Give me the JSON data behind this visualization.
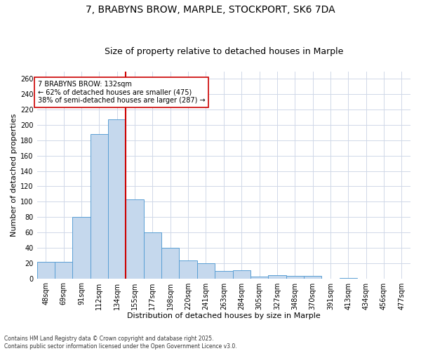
{
  "title_line1": "7, BRABYNS BROW, MARPLE, STOCKPORT, SK6 7DA",
  "title_line2": "Size of property relative to detached houses in Marple",
  "xlabel": "Distribution of detached houses by size in Marple",
  "ylabel": "Number of detached properties",
  "categories": [
    "48sqm",
    "69sqm",
    "91sqm",
    "112sqm",
    "134sqm",
    "155sqm",
    "177sqm",
    "198sqm",
    "220sqm",
    "241sqm",
    "263sqm",
    "284sqm",
    "305sqm",
    "327sqm",
    "348sqm",
    "370sqm",
    "391sqm",
    "413sqm",
    "434sqm",
    "456sqm",
    "477sqm"
  ],
  "values": [
    22,
    22,
    80,
    188,
    207,
    103,
    60,
    40,
    23,
    20,
    10,
    11,
    2,
    4,
    3,
    3,
    0,
    1,
    0,
    0,
    0
  ],
  "bar_color": "#c5d8ed",
  "bar_edge_color": "#5a9fd4",
  "vline_index": 4.5,
  "vline_color": "#cc0000",
  "ylim": [
    0,
    270
  ],
  "yticks": [
    0,
    20,
    40,
    60,
    80,
    100,
    120,
    140,
    160,
    180,
    200,
    220,
    240,
    260
  ],
  "annotation_text": "7 BRABYNS BROW: 132sqm\n← 62% of detached houses are smaller (475)\n38% of semi-detached houses are larger (287) →",
  "annotation_box_color": "#ffffff",
  "annotation_box_edge": "#cc0000",
  "footnote_line1": "Contains HM Land Registry data © Crown copyright and database right 2025.",
  "footnote_line2": "Contains public sector information licensed under the Open Government Licence v3.0.",
  "background_color": "#ffffff",
  "grid_color": "#d0d8e8",
  "title_fontsize": 10,
  "subtitle_fontsize": 9,
  "axis_label_fontsize": 8,
  "tick_fontsize": 7,
  "annotation_fontsize": 7,
  "footnote_fontsize": 5.5
}
